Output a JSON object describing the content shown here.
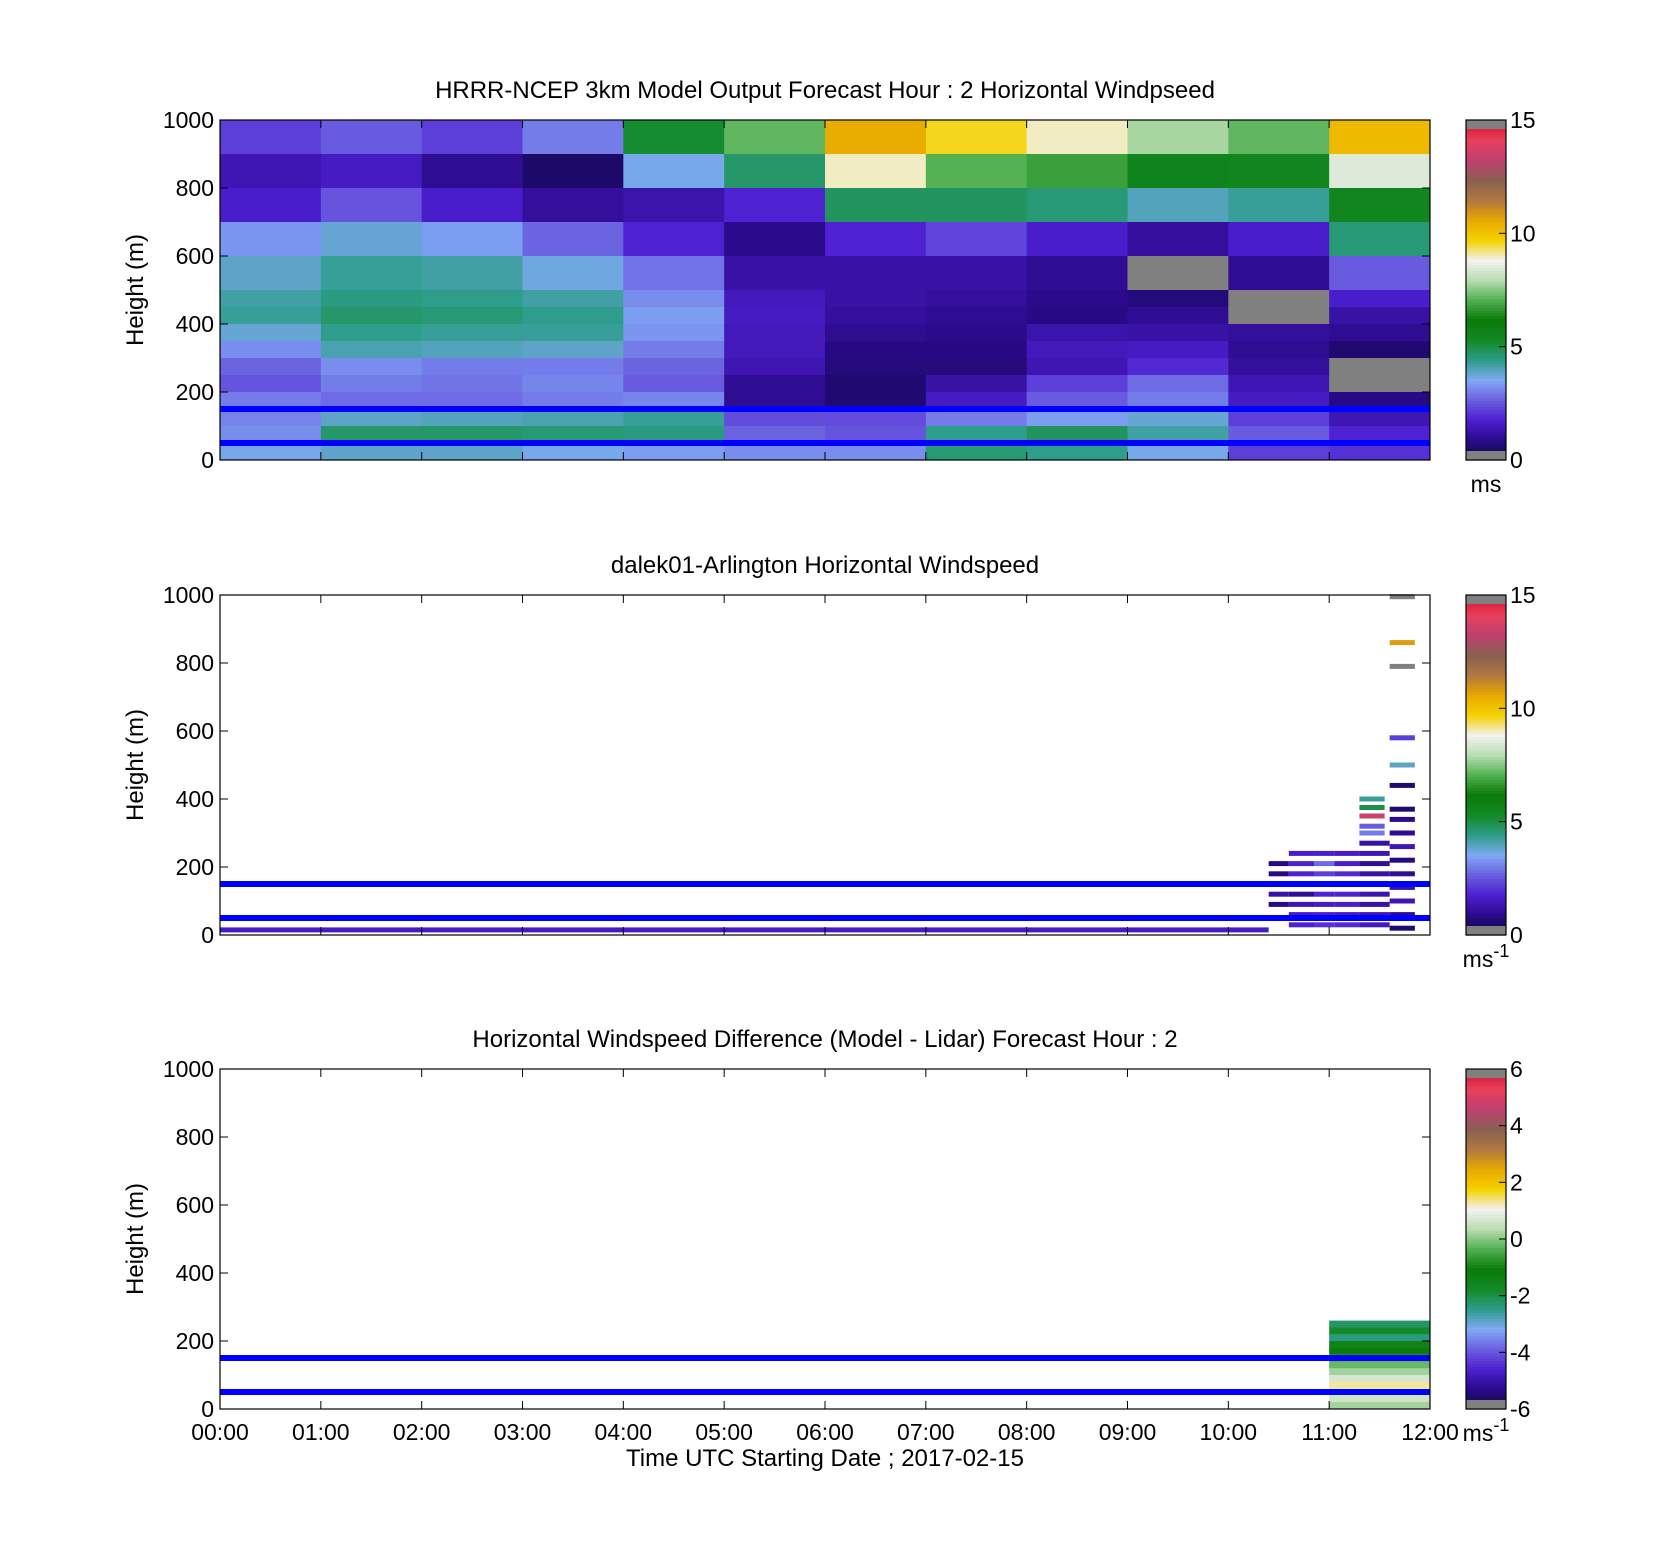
{
  "figure": {
    "xlabel": "Time UTC  Starting Date ; 2017-02-15",
    "x_ticks": [
      "00:00",
      "01:00",
      "02:00",
      "03:00",
      "04:00",
      "05:00",
      "06:00",
      "07:00",
      "08:00",
      "09:00",
      "10:00",
      "11:00",
      "12:00"
    ]
  },
  "reference_lines_m": [
    50,
    150
  ],
  "chart_data": [
    {
      "type": "heatmap",
      "title": "HRRR-NCEP 3km Model Output   Forecast Hour : 2 Horizontal Windpseed",
      "ylabel": "Height (m)",
      "ylim": [
        0,
        1000
      ],
      "y_ticks": [
        "0",
        "200",
        "400",
        "600",
        "800",
        "1000"
      ],
      "colorbar": {
        "ticks": [
          "0",
          "5",
          "10",
          "15"
        ],
        "range": [
          0,
          15
        ],
        "unit": "ms"
      },
      "x_hours": [
        0,
        1,
        2,
        3,
        4,
        5,
        6,
        7,
        8,
        9,
        10,
        11
      ],
      "layers": [
        {
          "bottom": 900,
          "top": 1000,
          "values": [
            2.2,
            2.6,
            2.2,
            3.0,
            5.2,
            7.2,
            10.5,
            9.6,
            9.0,
            7.8,
            7.2,
            10.2
          ]
        },
        {
          "bottom": 800,
          "top": 900,
          "values": [
            1.4,
            1.6,
            1.0,
            0.5,
            3.6,
            4.7,
            9.0,
            7.1,
            6.8,
            5.6,
            5.5,
            8.5
          ]
        },
        {
          "bottom": 700,
          "top": 800,
          "values": [
            1.7,
            2.5,
            1.7,
            1.1,
            1.3,
            1.8,
            4.8,
            4.8,
            4.6,
            4.0,
            4.3,
            5.5
          ]
        },
        {
          "bottom": 600,
          "top": 700,
          "values": [
            3.3,
            3.8,
            3.4,
            2.7,
            1.8,
            0.9,
            1.8,
            2.3,
            1.7,
            1.1,
            1.7,
            4.6
          ]
        },
        {
          "bottom": 500,
          "top": 600,
          "values": [
            3.9,
            4.3,
            4.2,
            3.7,
            2.9,
            1.2,
            1.2,
            1.2,
            1.0,
            15.5,
            1.0,
            2.6
          ]
        },
        {
          "bottom": 450,
          "top": 500,
          "values": [
            4.2,
            4.5,
            4.4,
            4.2,
            3.2,
            1.5,
            1.2,
            1.1,
            0.9,
            0.7,
            15.5,
            1.7
          ]
        },
        {
          "bottom": 400,
          "top": 450,
          "values": [
            4.3,
            4.7,
            4.6,
            4.4,
            3.4,
            1.6,
            1.1,
            1.0,
            0.8,
            1.0,
            15.5,
            1.2
          ]
        },
        {
          "bottom": 350,
          "top": 400,
          "values": [
            3.8,
            4.4,
            4.3,
            4.3,
            3.3,
            1.5,
            1.0,
            0.9,
            1.3,
            1.2,
            1.1,
            1.0
          ]
        },
        {
          "bottom": 300,
          "top": 350,
          "values": [
            3.2,
            4.1,
            4.0,
            3.9,
            3.0,
            1.5,
            0.8,
            0.8,
            1.5,
            1.6,
            1.0,
            0.6
          ]
        },
        {
          "bottom": 250,
          "top": 300,
          "values": [
            2.7,
            3.2,
            3.0,
            3.0,
            2.7,
            1.4,
            0.7,
            0.7,
            1.4,
            1.9,
            1.1,
            15.5
          ]
        },
        {
          "bottom": 200,
          "top": 250,
          "values": [
            2.5,
            3.0,
            2.9,
            3.1,
            2.6,
            1.0,
            0.6,
            1.2,
            2.2,
            2.8,
            1.4,
            15.5
          ]
        },
        {
          "bottom": 150,
          "top": 200,
          "values": [
            3.0,
            2.8,
            2.8,
            3.0,
            3.1,
            1.0,
            0.6,
            1.6,
            2.6,
            3.0,
            1.6,
            0.8
          ]
        },
        {
          "bottom": 100,
          "top": 150,
          "values": [
            3.1,
            3.9,
            4.0,
            4.1,
            4.3,
            2.4,
            2.4,
            3.0,
            3.4,
            3.8,
            2.2,
            1.4
          ]
        },
        {
          "bottom": 50,
          "top": 100,
          "values": [
            3.2,
            4.7,
            4.7,
            4.6,
            4.5,
            2.7,
            2.5,
            4.4,
            4.8,
            4.2,
            2.6,
            1.8
          ]
        },
        {
          "bottom": 0,
          "top": 50,
          "values": [
            3.6,
            3.9,
            3.9,
            3.6,
            3.4,
            3.2,
            3.2,
            4.6,
            4.4,
            3.6,
            2.2,
            2.0
          ]
        }
      ]
    },
    {
      "type": "heatmap",
      "title": "dalek01-Arlington  Horizontal Windspeed",
      "ylabel": "Height (m)",
      "ylim": [
        0,
        1000
      ],
      "y_ticks": [
        "0",
        "200",
        "400",
        "600",
        "800",
        "1000"
      ],
      "colorbar": {
        "ticks": [
          "0",
          "5",
          "10",
          "15"
        ],
        "range": [
          0,
          15
        ],
        "unit": "ms",
        "unit_exponent": "-1"
      },
      "segments": [
        {
          "x0": 0,
          "x1": 10.4,
          "height": 15,
          "value": 1.6
        },
        {
          "x0": 10.4,
          "x1": 10.6,
          "height": 90,
          "value": 0.8
        },
        {
          "x0": 10.4,
          "x1": 10.6,
          "height": 120,
          "value": 1.2
        },
        {
          "x0": 10.4,
          "x1": 10.6,
          "height": 150,
          "value": 0.9
        },
        {
          "x0": 10.4,
          "x1": 10.6,
          "height": 180,
          "value": 0.8
        },
        {
          "x0": 10.4,
          "x1": 10.6,
          "height": 210,
          "value": 0.8
        },
        {
          "x0": 10.6,
          "x1": 10.85,
          "height": 30,
          "value": 1.8
        },
        {
          "x0": 10.6,
          "x1": 10.85,
          "height": 60,
          "value": 1.6
        },
        {
          "x0": 10.6,
          "x1": 10.85,
          "height": 90,
          "value": 1.4
        },
        {
          "x0": 10.6,
          "x1": 10.85,
          "height": 120,
          "value": 1.0
        },
        {
          "x0": 10.6,
          "x1": 10.85,
          "height": 150,
          "value": 1.5
        },
        {
          "x0": 10.6,
          "x1": 10.85,
          "height": 180,
          "value": 1.8
        },
        {
          "x0": 10.6,
          "x1": 10.85,
          "height": 210,
          "value": 1.8
        },
        {
          "x0": 10.6,
          "x1": 10.85,
          "height": 240,
          "value": 1.7
        },
        {
          "x0": 10.85,
          "x1": 11.05,
          "height": 30,
          "value": 2.0
        },
        {
          "x0": 10.85,
          "x1": 11.05,
          "height": 60,
          "value": 1.7
        },
        {
          "x0": 10.85,
          "x1": 11.05,
          "height": 90,
          "value": 1.6
        },
        {
          "x0": 10.85,
          "x1": 11.05,
          "height": 120,
          "value": 1.8
        },
        {
          "x0": 10.85,
          "x1": 11.05,
          "height": 150,
          "value": 1.9
        },
        {
          "x0": 10.85,
          "x1": 11.05,
          "height": 180,
          "value": 2.2
        },
        {
          "x0": 10.85,
          "x1": 11.05,
          "height": 210,
          "value": 2.8
        },
        {
          "x0": 10.85,
          "x1": 11.05,
          "height": 240,
          "value": 1.7
        },
        {
          "x0": 11.05,
          "x1": 11.3,
          "height": 30,
          "value": 1.9
        },
        {
          "x0": 11.05,
          "x1": 11.3,
          "height": 60,
          "value": 1.6
        },
        {
          "x0": 11.05,
          "x1": 11.3,
          "height": 90,
          "value": 1.7
        },
        {
          "x0": 11.05,
          "x1": 11.3,
          "height": 120,
          "value": 1.8
        },
        {
          "x0": 11.05,
          "x1": 11.3,
          "height": 150,
          "value": 1.7
        },
        {
          "x0": 11.05,
          "x1": 11.3,
          "height": 180,
          "value": 1.9
        },
        {
          "x0": 11.05,
          "x1": 11.3,
          "height": 210,
          "value": 1.7
        },
        {
          "x0": 11.05,
          "x1": 11.3,
          "height": 240,
          "value": 1.6
        },
        {
          "x0": 11.3,
          "x1": 11.6,
          "height": 30,
          "value": 1.5
        },
        {
          "x0": 11.3,
          "x1": 11.6,
          "height": 60,
          "value": 1.4
        },
        {
          "x0": 11.3,
          "x1": 11.6,
          "height": 90,
          "value": 1.2
        },
        {
          "x0": 11.3,
          "x1": 11.6,
          "height": 120,
          "value": 1.3
        },
        {
          "x0": 11.3,
          "x1": 11.6,
          "height": 150,
          "value": 1.1
        },
        {
          "x0": 11.3,
          "x1": 11.6,
          "height": 180,
          "value": 1.2
        },
        {
          "x0": 11.3,
          "x1": 11.6,
          "height": 210,
          "value": 1.0
        },
        {
          "x0": 11.3,
          "x1": 11.6,
          "height": 240,
          "value": 1.4
        },
        {
          "x0": 11.3,
          "x1": 11.6,
          "height": 270,
          "value": 1.2
        },
        {
          "x0": 11.6,
          "x1": 11.85,
          "height": 20,
          "value": 0.6
        },
        {
          "x0": 11.6,
          "x1": 11.85,
          "height": 60,
          "value": 1.0
        },
        {
          "x0": 11.6,
          "x1": 11.85,
          "height": 100,
          "value": 1.4
        },
        {
          "x0": 11.6,
          "x1": 11.85,
          "height": 140,
          "value": 1.2
        },
        {
          "x0": 11.6,
          "x1": 11.85,
          "height": 180,
          "value": 1.0
        },
        {
          "x0": 11.6,
          "x1": 11.85,
          "height": 220,
          "value": 0.8
        },
        {
          "x0": 11.6,
          "x1": 11.85,
          "height": 260,
          "value": 1.4
        },
        {
          "x0": 11.6,
          "x1": 11.85,
          "height": 300,
          "value": 1.0
        },
        {
          "x0": 11.6,
          "x1": 11.85,
          "height": 340,
          "value": 0.9
        },
        {
          "x0": 11.6,
          "x1": 11.85,
          "height": 370,
          "value": 0.6
        },
        {
          "x0": 11.3,
          "x1": 11.55,
          "height": 300,
          "value": 3.0
        },
        {
          "x0": 11.3,
          "x1": 11.55,
          "height": 320,
          "value": 2.6
        },
        {
          "x0": 11.3,
          "x1": 11.55,
          "height": 350,
          "value": 13.5
        },
        {
          "x0": 11.3,
          "x1": 11.55,
          "height": 375,
          "value": 5.0
        },
        {
          "x0": 11.3,
          "x1": 11.55,
          "height": 400,
          "value": 4.3
        },
        {
          "x0": 11.6,
          "x1": 11.85,
          "height": 440,
          "value": 0.6
        },
        {
          "x0": 11.6,
          "x1": 11.85,
          "height": 500,
          "value": 3.9
        },
        {
          "x0": 11.6,
          "x1": 11.85,
          "height": 580,
          "value": 2.2
        },
        {
          "x0": 11.6,
          "x1": 11.85,
          "height": 790,
          "value": 15.5
        },
        {
          "x0": 11.6,
          "x1": 11.85,
          "height": 860,
          "value": 10.8
        },
        {
          "x0": 11.6,
          "x1": 11.85,
          "height": 995,
          "value": 15.5
        }
      ]
    },
    {
      "type": "heatmap",
      "title": "Horizontal Windspeed Difference (Model - Lidar) Forecast Hour : 2",
      "ylabel": "Height (m)",
      "ylim": [
        0,
        1000
      ],
      "y_ticks": [
        "0",
        "200",
        "400",
        "600",
        "800",
        "1000"
      ],
      "colorbar": {
        "ticks": [
          "-6",
          "-4",
          "-2",
          "0",
          "2",
          "4",
          "6"
        ],
        "range": [
          -6,
          6
        ],
        "unit": "ms",
        "unit_exponent": "-1"
      },
      "x_range": [
        11,
        12
      ],
      "layers": [
        {
          "bottom": 240,
          "top": 260,
          "value": -2.2
        },
        {
          "bottom": 220,
          "top": 240,
          "value": -1.8
        },
        {
          "bottom": 200,
          "top": 220,
          "value": -2.4
        },
        {
          "bottom": 180,
          "top": 200,
          "value": -1.5
        },
        {
          "bottom": 160,
          "top": 180,
          "value": -1.1
        },
        {
          "bottom": 140,
          "top": 160,
          "value": -0.5
        },
        {
          "bottom": 120,
          "top": 140,
          "value": -0.2
        },
        {
          "bottom": 100,
          "top": 120,
          "value": 0.2
        },
        {
          "bottom": 80,
          "top": 100,
          "value": 0.7
        },
        {
          "bottom": 60,
          "top": 80,
          "value": 1.3
        },
        {
          "bottom": 40,
          "top": 60,
          "value": 1.0
        },
        {
          "bottom": 20,
          "top": 40,
          "value": 0.6
        },
        {
          "bottom": 0,
          "top": 20,
          "value": 0.2
        }
      ]
    }
  ],
  "colors": {
    "reference_line": "#0000ff",
    "colormap": [
      "#0b0b3b",
      "#2a0a8a",
      "#4d1fd1",
      "#6b5ee0",
      "#7fa9f5",
      "#2d9d8a",
      "#138a25",
      "#0a7a0a",
      "#4fb04f",
      "#b8ddb0",
      "#f2f2f2",
      "#f4d200",
      "#e8a800",
      "#b07840",
      "#8a6050",
      "#c04070",
      "#e8405a",
      "#d4102c",
      "#808080"
    ]
  }
}
